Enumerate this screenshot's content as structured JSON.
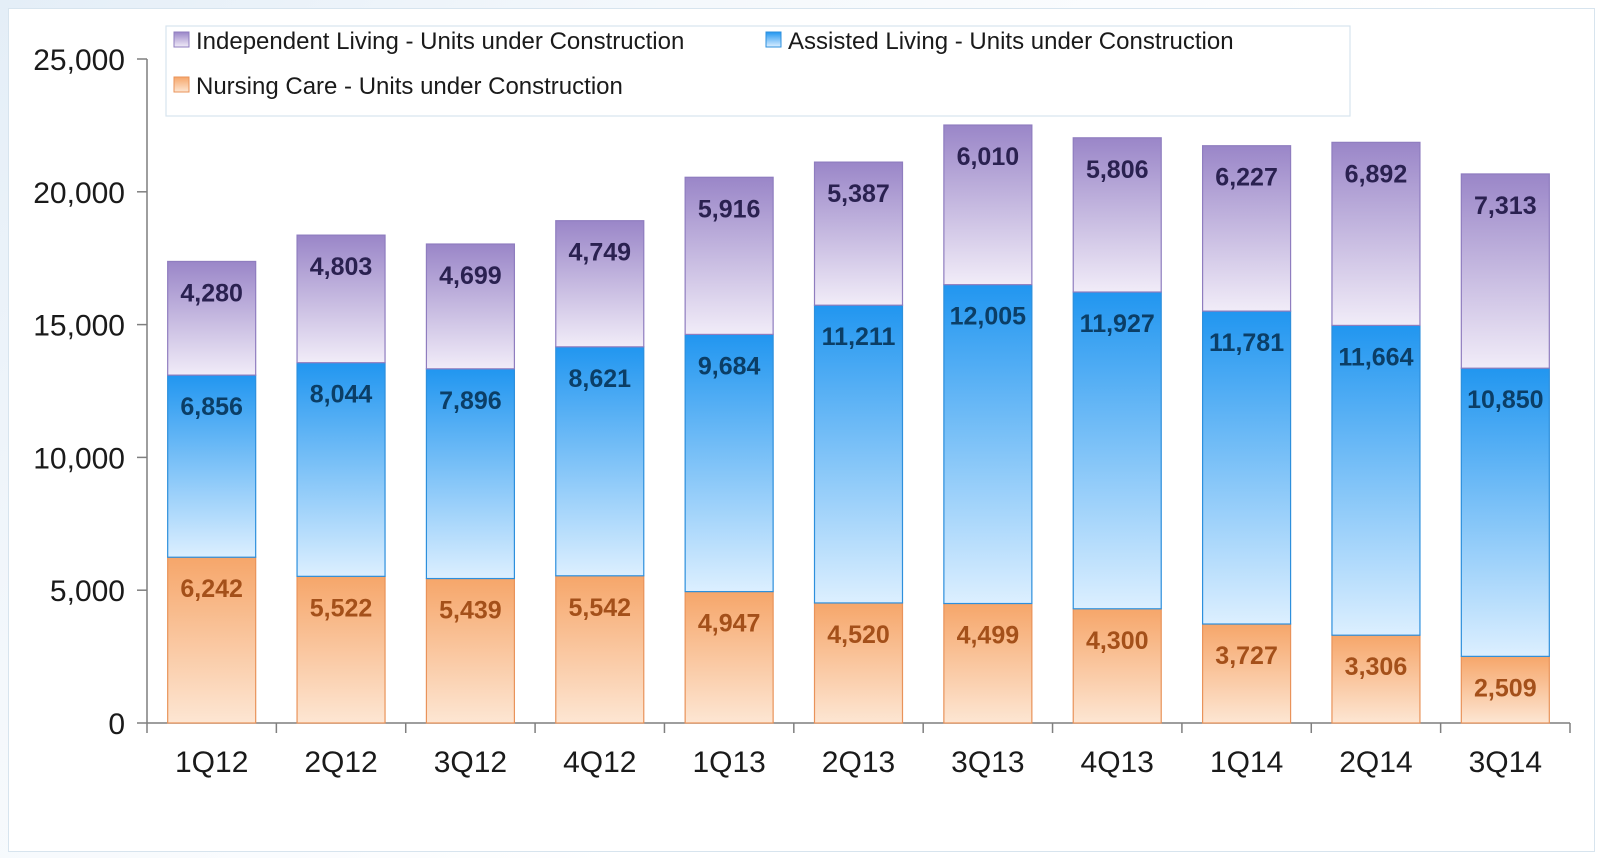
{
  "chart_data": {
    "type": "bar",
    "stacked": true,
    "categories": [
      "1Q12",
      "2Q12",
      "3Q12",
      "4Q12",
      "1Q13",
      "2Q13",
      "3Q13",
      "4Q13",
      "1Q14",
      "2Q14",
      "3Q14"
    ],
    "series": [
      {
        "name": "Nursing Care - Units under Construction",
        "values": [
          6242,
          5522,
          5439,
          5542,
          4947,
          4520,
          4499,
          4300,
          3727,
          3306,
          2509
        ],
        "labels": [
          "6,242",
          "5,522",
          "5,439",
          "5,542",
          "4,947",
          "4,520",
          "4,499",
          "4,300",
          "3,727",
          "3,306",
          "2,509"
        ],
        "color_top": "#f6a66a",
        "color_bottom": "#fde6d3",
        "stroke": "#e9935a",
        "label_color": "#a4501a"
      },
      {
        "name": "Assisted Living - Units under Construction",
        "values": [
          6856,
          8044,
          7896,
          8621,
          9684,
          11211,
          12005,
          11927,
          11781,
          11664,
          10850
        ],
        "labels": [
          "6,856",
          "8,044",
          "7,896",
          "8,621",
          "9,684",
          "11,211",
          "12,005",
          "11,927",
          "11,781",
          "11,664",
          "10,850"
        ],
        "color_top": "#2196f0",
        "color_bottom": "#dcefff",
        "stroke": "#2d8fdc",
        "label_color": "#0b3e66"
      },
      {
        "name": "Independent Living - Units under Construction",
        "values": [
          4280,
          4803,
          4699,
          4749,
          5916,
          5387,
          6010,
          5806,
          6227,
          6892,
          7313
        ],
        "labels": [
          "4,280",
          "4,803",
          "4,699",
          "4,749",
          "5,916",
          "5,387",
          "6,010",
          "5,806",
          "6,227",
          "6,892",
          "7,313"
        ],
        "color_top": "#9a86c8",
        "color_bottom": "#f1ecf8",
        "stroke": "#8f7dbf",
        "label_color": "#2a2150"
      }
    ],
    "title": "",
    "xlabel": "",
    "ylabel": "",
    "ylim": [
      0,
      25000
    ],
    "y_ticks": [
      0,
      5000,
      10000,
      15000,
      20000,
      25000
    ],
    "y_tick_labels": [
      "0",
      "5,000",
      "10,000",
      "15,000",
      "20,000",
      "25,000"
    ],
    "grid": false,
    "legend": {
      "placement": "top-left",
      "items": [
        "Independent Living - Units under Construction",
        "Assisted Living - Units under Construction",
        "Nursing Care - Units under Construction"
      ]
    }
  }
}
